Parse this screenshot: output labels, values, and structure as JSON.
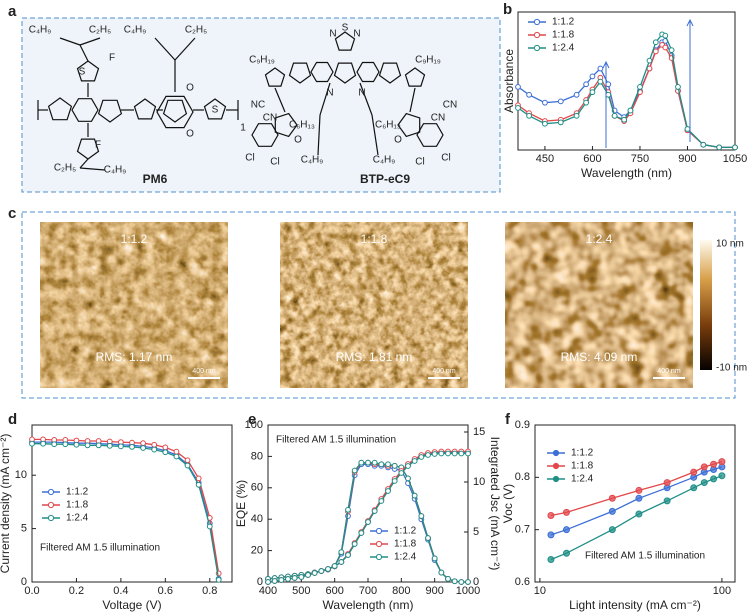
{
  "panel_labels": [
    "a",
    "b",
    "c",
    "d",
    "e",
    "f"
  ],
  "structures": {
    "names": [
      "PM6",
      "BTP-eC9"
    ],
    "labels": [
      "C₄H₉",
      "C₂H₅",
      "F",
      "S",
      "C₄H₉",
      "C₂H₅",
      "O",
      "O",
      "S",
      "F",
      "C₂H₅",
      "C₄H₉",
      "1",
      "N",
      "S",
      "N",
      "C₉H₁₉",
      "C₉H₁₉",
      "N",
      "N",
      "C₆H₁₃",
      "C₆H₁₃",
      "C₄H₉",
      "C₄H₉",
      "NC",
      "CN",
      "CN",
      "CN",
      "O",
      "O",
      "Cl",
      "Cl",
      "Cl",
      "Cl"
    ]
  },
  "afm": {
    "images": [
      {
        "label": "1:1.2",
        "rms": "RMS: 1.17 nm",
        "scale_bar": "400 nm"
      },
      {
        "label": "1:1.8",
        "rms": "RMS: 1.81 nm",
        "scale_bar": "400 nm"
      },
      {
        "label": "1:2.4",
        "rms": "RMS: 4.09 nm",
        "scale_bar": "400 nm"
      }
    ],
    "colorbar": {
      "max_label": "10 nm",
      "min_label": "-10 nm"
    }
  },
  "chart_data": [
    {
      "type": "line",
      "xlabel": "Wavelength (nm)",
      "ylabel": "Absorbance",
      "x": [
        365,
        400,
        450,
        500,
        550,
        580,
        600,
        625,
        650,
        670,
        700,
        720,
        750,
        780,
        800,
        820,
        830,
        850,
        870,
        900,
        950,
        1000,
        1050
      ],
      "xlim": [
        365,
        1050
      ],
      "xticks": [
        450,
        600,
        750,
        900,
        1050
      ],
      "ylim": [
        0,
        1.05
      ],
      "yticks": [],
      "legend": "upper left",
      "series": [
        {
          "name": "1:1.2",
          "color": "#3b6fd6",
          "values": [
            0.48,
            0.42,
            0.36,
            0.37,
            0.42,
            0.5,
            0.56,
            0.62,
            0.5,
            0.3,
            0.25,
            0.3,
            0.45,
            0.62,
            0.76,
            0.82,
            0.83,
            0.72,
            0.45,
            0.15,
            0.04,
            0.02,
            0.02
          ]
        },
        {
          "name": "1:1.8",
          "color": "#e2474b",
          "values": [
            0.34,
            0.28,
            0.22,
            0.23,
            0.28,
            0.38,
            0.46,
            0.55,
            0.44,
            0.26,
            0.22,
            0.28,
            0.44,
            0.62,
            0.75,
            0.8,
            0.78,
            0.7,
            0.45,
            0.15,
            0.04,
            0.02,
            0.02
          ]
        },
        {
          "name": "1:2.4",
          "color": "#1f8f86",
          "values": [
            0.32,
            0.26,
            0.2,
            0.21,
            0.26,
            0.36,
            0.44,
            0.52,
            0.42,
            0.26,
            0.23,
            0.3,
            0.48,
            0.68,
            0.82,
            0.88,
            0.87,
            0.76,
            0.48,
            0.16,
            0.04,
            0.02,
            0.02
          ]
        }
      ]
    },
    {
      "type": "line",
      "xlabel": "Voltage (V)",
      "ylabel": "Current density (mA cm⁻²)",
      "annotation": "Filtered AM 1.5 illumination",
      "x": [
        0,
        0.05,
        0.1,
        0.15,
        0.2,
        0.25,
        0.3,
        0.35,
        0.4,
        0.45,
        0.5,
        0.55,
        0.6,
        0.65,
        0.7,
        0.75,
        0.8,
        0.84
      ],
      "xlim": [
        0,
        0.9
      ],
      "xticks": [
        {
          "value": 0,
          "label": "0.0"
        },
        0.2,
        0.4,
        0.6,
        0.8
      ],
      "ylim": [
        0,
        14.7
      ],
      "yticks": [
        0,
        5,
        10
      ],
      "legend": "center left",
      "series": [
        {
          "name": "1:1.2",
          "color": "#3b6fd6",
          "values": [
            13.1,
            13.1,
            13.1,
            13.05,
            13.0,
            13.0,
            12.95,
            12.9,
            12.85,
            12.8,
            12.7,
            12.55,
            12.3,
            11.9,
            11.0,
            9.3,
            5.5,
            0.3
          ]
        },
        {
          "name": "1:1.8",
          "color": "#e2474b",
          "values": [
            13.35,
            13.35,
            13.3,
            13.3,
            13.25,
            13.2,
            13.2,
            13.15,
            13.1,
            13.05,
            13.0,
            12.85,
            12.6,
            12.2,
            11.4,
            9.7,
            6.0,
            0.8
          ]
        },
        {
          "name": "1:2.4",
          "color": "#1f8f86",
          "values": [
            12.95,
            12.95,
            12.9,
            12.9,
            12.85,
            12.8,
            12.8,
            12.75,
            12.7,
            12.65,
            12.55,
            12.4,
            12.15,
            11.75,
            10.9,
            9.1,
            5.2,
            0.2
          ]
        }
      ]
    },
    {
      "type": "line",
      "xlabel": "Wavelength (nm)",
      "ylabel": "EQE (%)",
      "y2label": "Integrated Jsc (mA cm⁻²)",
      "annotation": "Filtered AM 1.5 illumination",
      "x": [
        400,
        420,
        440,
        460,
        480,
        500,
        520,
        540,
        560,
        580,
        600,
        620,
        640,
        660,
        680,
        700,
        720,
        740,
        760,
        780,
        800,
        820,
        840,
        860,
        880,
        900,
        920,
        940,
        960,
        980,
        1000
      ],
      "xlim": [
        400,
        1000
      ],
      "xticks": [
        400,
        500,
        600,
        700,
        800,
        900,
        1000
      ],
      "ylim": [
        0,
        100
      ],
      "yticks": [
        0,
        20,
        40,
        60,
        80,
        100
      ],
      "y2lim": [
        0,
        15.7
      ],
      "y2ticks": [
        0,
        5,
        10,
        15
      ],
      "legend": "lower right",
      "series": [
        {
          "name": "1:1.2",
          "color": "#3b6fd6",
          "values": [
            2,
            2.5,
            3,
            3.5,
            4,
            4.5,
            5,
            6,
            7,
            8,
            10,
            18,
            42,
            68,
            75,
            75,
            74,
            74,
            73,
            72,
            71,
            63,
            53,
            40,
            27,
            14,
            6,
            2,
            0.5,
            0,
            0
          ]
        },
        {
          "name": "1:1.8",
          "color": "#e2474b",
          "values": [
            2,
            2.5,
            3,
            3.5,
            4,
            4.5,
            5,
            6,
            7,
            8,
            10,
            19,
            45,
            70,
            76,
            76,
            75,
            75,
            74,
            74,
            73,
            66,
            55,
            42,
            28,
            15,
            6,
            2,
            0.5,
            0,
            0
          ]
        },
        {
          "name": "1:2.4",
          "color": "#1f8f86",
          "values": [
            2,
            2.5,
            3,
            3.5,
            4,
            4.5,
            5,
            6,
            7,
            8,
            10,
            19,
            46,
            71,
            76,
            76,
            76,
            75,
            75,
            74,
            73,
            66,
            55,
            42,
            28,
            15,
            6,
            2,
            0.5,
            0,
            0
          ]
        },
        {
          "color": "#3b6fd6",
          "axis": "y2",
          "values": [
            0,
            0.1,
            0.2,
            0.3,
            0.4,
            0.5,
            0.7,
            0.9,
            1.1,
            1.3,
            1.6,
            2.0,
            2.7,
            3.8,
            4.9,
            6.0,
            7.1,
            8.2,
            9.2,
            10.2,
            11.0,
            11.7,
            12.2,
            12.6,
            12.8,
            12.9,
            12.95,
            12.95,
            12.95,
            12.95,
            12.95
          ]
        },
        {
          "color": "#e2474b",
          "axis": "y2",
          "values": [
            0,
            0.1,
            0.2,
            0.3,
            0.4,
            0.5,
            0.7,
            0.9,
            1.1,
            1.3,
            1.6,
            2.0,
            2.8,
            3.9,
            5.0,
            6.1,
            7.2,
            8.3,
            9.3,
            10.3,
            11.1,
            11.8,
            12.3,
            12.7,
            12.9,
            13.0,
            13.05,
            13.05,
            13.05,
            13.05,
            13.05
          ]
        },
        {
          "color": "#1f8f86",
          "axis": "y2",
          "values": [
            0,
            0.1,
            0.2,
            0.3,
            0.4,
            0.5,
            0.7,
            0.9,
            1.1,
            1.3,
            1.6,
            2.0,
            2.7,
            3.8,
            4.9,
            6.0,
            7.1,
            8.1,
            9.1,
            10.1,
            10.9,
            11.6,
            12.1,
            12.5,
            12.7,
            12.8,
            12.85,
            12.85,
            12.85,
            12.85,
            12.85
          ]
        }
      ]
    },
    {
      "type": "scatter",
      "xlabel": "Light intensity (mA cm⁻²)",
      "ylabel": "Voc (V)",
      "annotation": "Filtered AM 1.5 illumination",
      "x": [
        11.5,
        14,
        25,
        35,
        50,
        70,
        80,
        90,
        100
      ],
      "xscale": "log",
      "xlim": [
        9.4,
        118
      ],
      "xticks": [
        10,
        100
      ],
      "ylim": [
        0.6,
        0.9
      ],
      "yticks": [
        0.6,
        0.7,
        0.8,
        0.9
      ],
      "legend": "upper left",
      "series": [
        {
          "name": "1:1.2",
          "color": "#3b6fd6",
          "values": [
            0.69,
            0.7,
            0.735,
            0.76,
            0.78,
            0.8,
            0.81,
            0.815,
            0.82
          ]
        },
        {
          "name": "1:1.8",
          "color": "#e2474b",
          "values": [
            0.727,
            0.733,
            0.76,
            0.775,
            0.79,
            0.81,
            0.82,
            0.825,
            0.83
          ]
        },
        {
          "name": "1:2.4",
          "color": "#1f8f86",
          "values": [
            0.643,
            0.655,
            0.7,
            0.73,
            0.755,
            0.78,
            0.79,
            0.797,
            0.803
          ]
        }
      ]
    }
  ]
}
